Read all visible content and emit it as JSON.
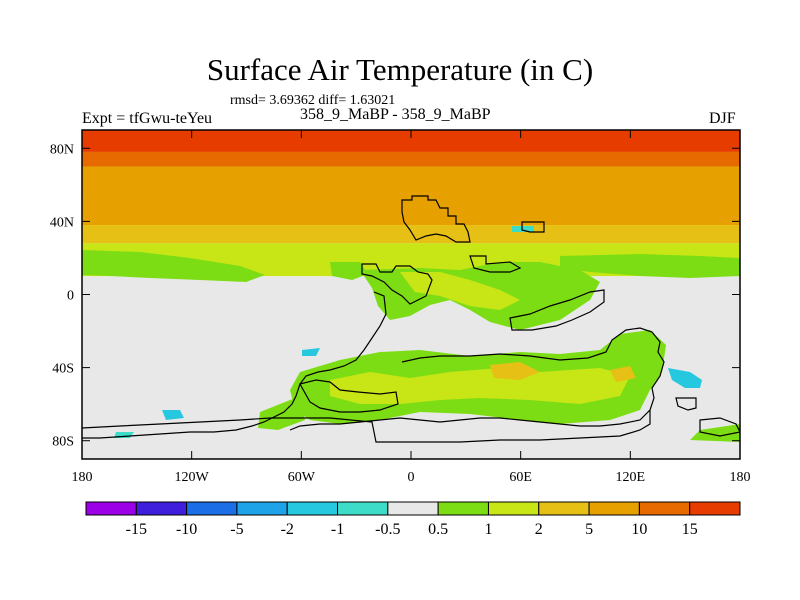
{
  "chart_data": {
    "type": "heatmap",
    "title": "Surface Air Temperature (in C)",
    "stats_text": "rmsd= 3.69362 diff= 1.63021",
    "left_label": "Expt = tfGwu-teYeu",
    "center_label": "358_9_MaBP - 358_9_MaBP",
    "right_label": "DJF",
    "projection": "cylindrical equidistant",
    "xlim": [
      -180,
      180
    ],
    "ylim": [
      -90,
      90
    ],
    "x_ticks": [
      {
        "value": -180,
        "label": "180"
      },
      {
        "value": -120,
        "label": "120W"
      },
      {
        "value": -60,
        "label": "60W"
      },
      {
        "value": 0,
        "label": "0"
      },
      {
        "value": 60,
        "label": "60E"
      },
      {
        "value": 120,
        "label": "120E"
      },
      {
        "value": 180,
        "label": "180"
      }
    ],
    "y_ticks": [
      {
        "value": 80,
        "label": "80N"
      },
      {
        "value": 40,
        "label": "40N"
      },
      {
        "value": 0,
        "label": "0"
      },
      {
        "value": -40,
        "label": "40S"
      },
      {
        "value": -80,
        "label": "80S"
      }
    ],
    "colorbar": {
      "colors": [
        "#9b00e6",
        "#3f1edc",
        "#1c6ee6",
        "#1ea3e8",
        "#26c8e0",
        "#3cdcc8",
        "#e8e8e8",
        "#7ddd14",
        "#c8e616",
        "#e6c014",
        "#e6a000",
        "#e66a00",
        "#e63c00"
      ],
      "labels": [
        "-15",
        "-10",
        "-5",
        "-2",
        "-1",
        "-0.5",
        "0.5",
        "1",
        "2",
        "5",
        "10",
        "15"
      ]
    },
    "lat_bands": [
      {
        "lat_min": 78,
        "lat_max": 90,
        "value": 15
      },
      {
        "lat_min": 70,
        "lat_max": 78,
        "value": 12
      },
      {
        "lat_min": 55,
        "lat_max": 70,
        "value": 8
      },
      {
        "lat_min": 38,
        "lat_max": 55,
        "value": 5
      },
      {
        "lat_min": 28,
        "lat_max": 38,
        "value": 3
      },
      {
        "lat_min": 10,
        "lat_max": 28,
        "value": 1.5
      },
      {
        "lat_min": -90,
        "lat_max": 10,
        "value": 0
      }
    ]
  }
}
